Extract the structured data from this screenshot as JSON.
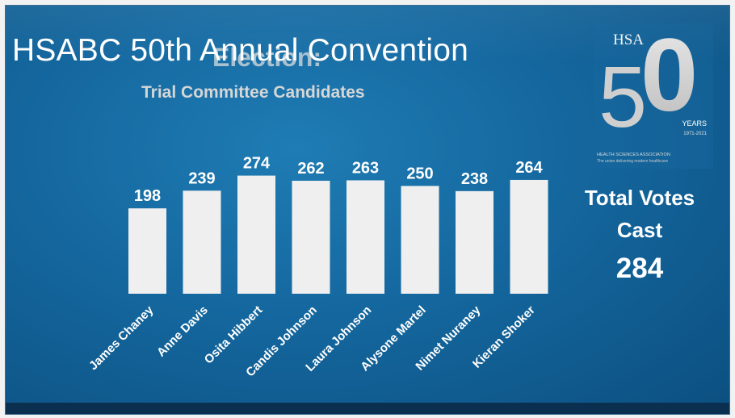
{
  "title": "HSABC 50th Annual Convention",
  "overlay_title": "Election:",
  "subtitle": "Trial Committee Candidates",
  "total": {
    "label_line1": "Total Votes",
    "label_line2": "Cast",
    "value": "284"
  },
  "logo": {
    "org_abbrev": "HSA",
    "number_five": "5",
    "number_zero": "0",
    "years_label": "YEARS",
    "years_range": "1971-2021",
    "org_name": "HEALTH SCIENCES ASSOCIATION",
    "tagline": "The union delivering modern healthcare"
  },
  "colors": {
    "background": "#14679e",
    "bars": "#efefef",
    "text": "#ffffff"
  },
  "chart_data": {
    "type": "bar",
    "title": "Trial Committee Candidates",
    "categories": [
      "James Chaney",
      "Anne Davis",
      "Osita Hibbert",
      "Candis Johnson",
      "Laura Johnson",
      "Alysone Martel",
      "Nimet Nuraney",
      "Kieran Shoker"
    ],
    "values": [
      198,
      239,
      274,
      262,
      263,
      250,
      238,
      264
    ],
    "data_labels": [
      "198",
      "239",
      "274",
      "262",
      "263",
      "250",
      "238",
      "264"
    ],
    "xlabel": "",
    "ylabel": "",
    "grid": false,
    "legend": "none"
  }
}
